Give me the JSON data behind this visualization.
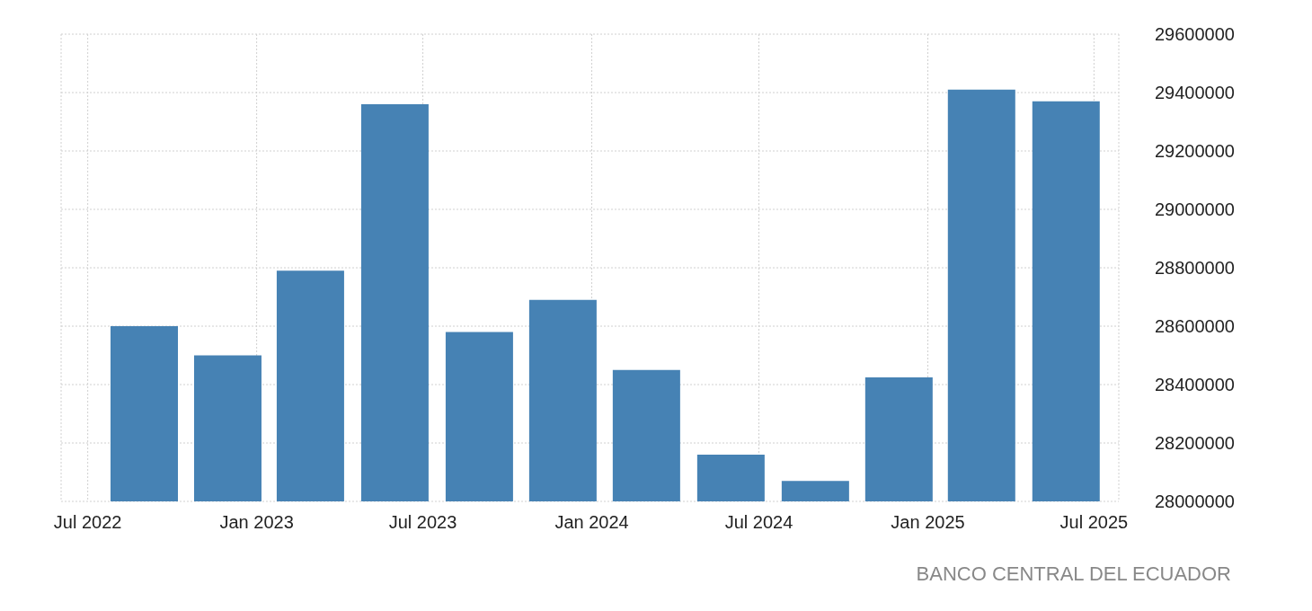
{
  "chart_data": {
    "type": "bar",
    "x": [
      "2022-09",
      "2022-12",
      "2023-03",
      "2023-06",
      "2023-09",
      "2023-12",
      "2024-03",
      "2024-06",
      "2024-09",
      "2024-12",
      "2025-03",
      "2025-06"
    ],
    "values": [
      28600000,
      28500000,
      28790000,
      29360000,
      28580000,
      28690000,
      28450000,
      28160000,
      28070000,
      28425000,
      29410000,
      29370000
    ],
    "color": "#4682b4",
    "xlim": [
      "2022-06-02",
      "2025-07-28"
    ],
    "xticks": [
      {
        "value": "2022-07",
        "label": "Jul 2022"
      },
      {
        "value": "2023-01",
        "label": "Jan 2023"
      },
      {
        "value": "2023-07",
        "label": "Jul 2023"
      },
      {
        "value": "2024-01",
        "label": "Jan 2024"
      },
      {
        "value": "2024-07",
        "label": "Jul 2024"
      },
      {
        "value": "2025-01",
        "label": "Jan 2025"
      },
      {
        "value": "2025-07",
        "label": "Jul 2025"
      }
    ],
    "ylim": [
      28000000,
      29600000
    ],
    "yticks": [
      28000000,
      28200000,
      28400000,
      28600000,
      28800000,
      29000000,
      29200000,
      29400000,
      29600000
    ],
    "grid": true,
    "annotations": [
      "BANCO CENTRAL DEL ECUADOR"
    ]
  }
}
